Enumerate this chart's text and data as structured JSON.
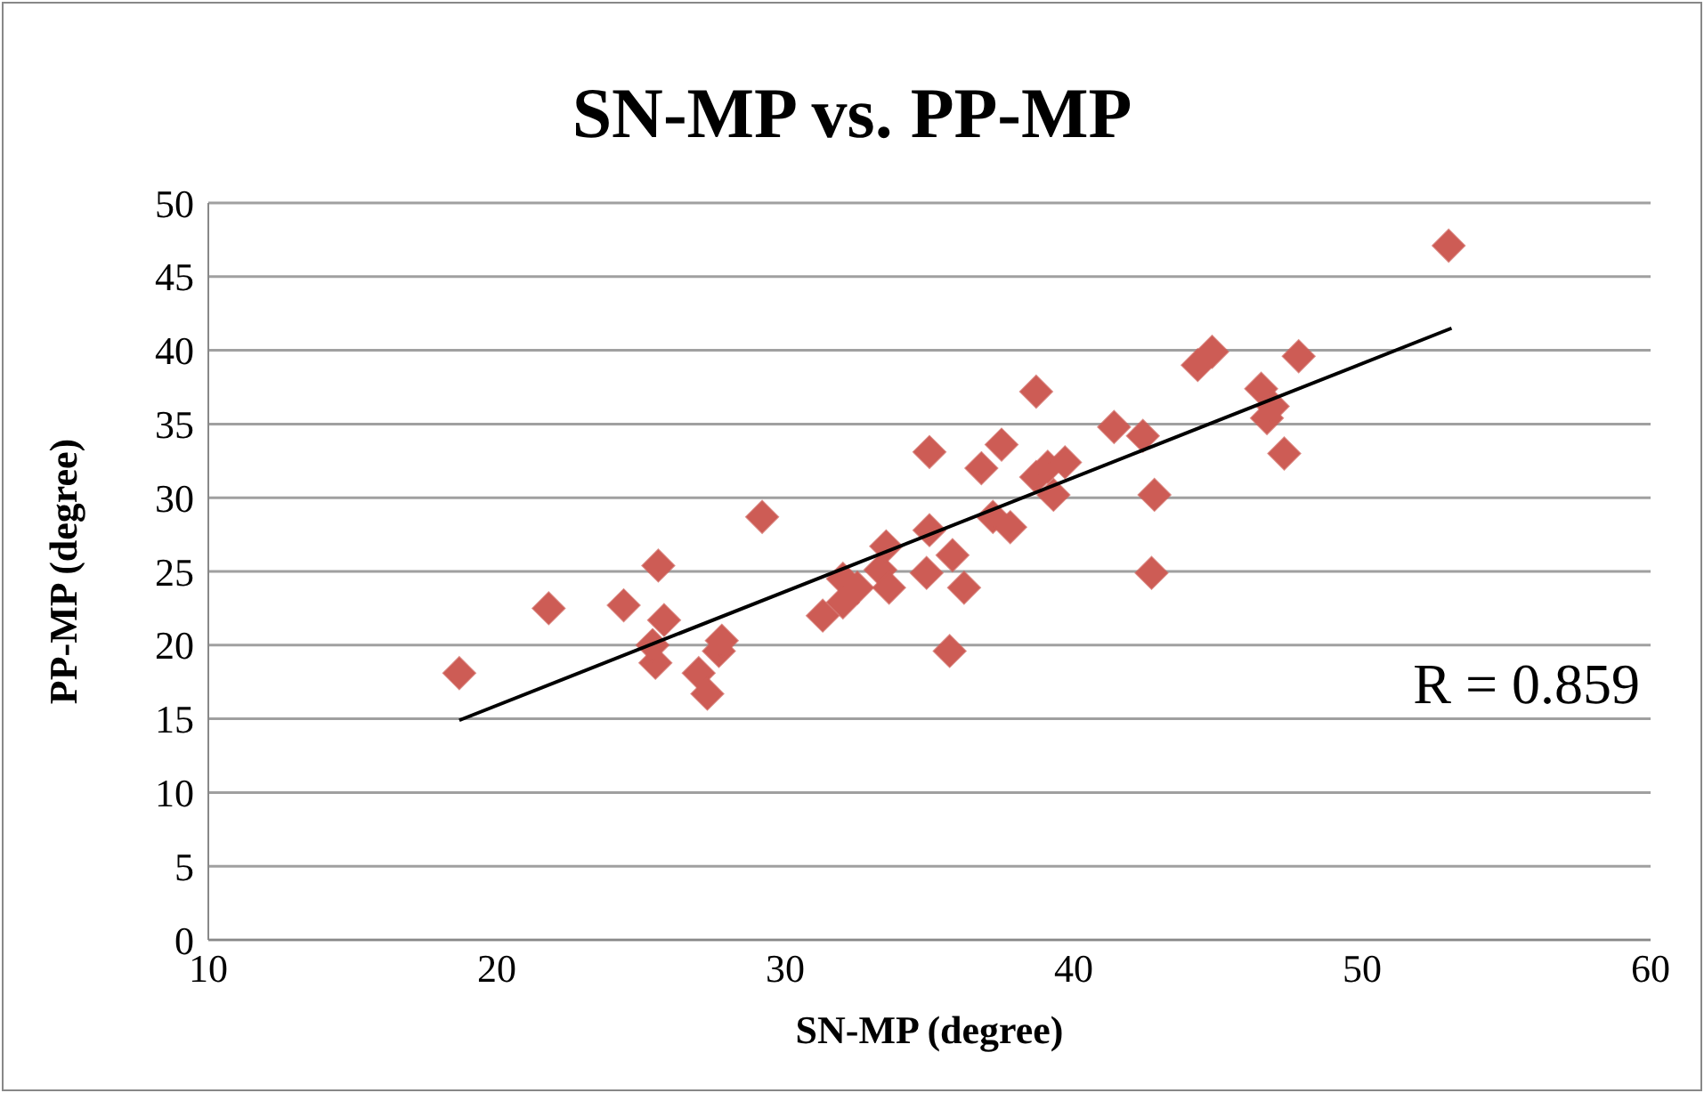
{
  "chart_data": {
    "type": "scatter",
    "title": "SN-MP vs. PP-MP",
    "xlabel": "SN-MP (degree)",
    "ylabel": "PP-MP (degree)",
    "xlim": [
      10,
      60
    ],
    "xticks": [
      10,
      20,
      30,
      40,
      50,
      60
    ],
    "ylim": [
      0,
      50
    ],
    "yticks": [
      0,
      5,
      10,
      15,
      20,
      25,
      30,
      35,
      40,
      45,
      50
    ],
    "grid": "y",
    "marker": "diamond",
    "legend": false,
    "annotations": [
      "R = 0.859"
    ],
    "series": [
      {
        "color": "#cd5c55",
        "x": [
          18.7,
          21.8,
          24.4,
          25.6,
          25.8,
          25.5,
          25.4,
          27.0,
          27.3,
          27.7,
          27.8,
          29.2,
          31.3,
          32.0,
          32.0,
          32.5,
          33.3,
          33.5,
          33.6,
          35.0,
          34.9,
          35.0,
          35.7,
          35.8,
          36.2,
          36.8,
          37.2,
          37.5,
          37.8,
          38.7,
          38.7,
          39.1,
          39.3,
          39.7,
          41.4,
          42.4,
          42.7,
          42.8,
          44.3,
          44.8,
          46.5,
          46.7,
          46.9,
          47.3,
          47.8,
          53.0
        ],
        "values": [
          18.1,
          22.5,
          22.7,
          25.4,
          21.7,
          18.8,
          20.0,
          18.1,
          16.7,
          19.6,
          20.3,
          28.7,
          22.0,
          24.5,
          22.9,
          23.9,
          25.1,
          26.7,
          23.9,
          33.1,
          24.9,
          27.8,
          19.6,
          26.1,
          23.9,
          32.0,
          28.7,
          33.6,
          28.0,
          37.2,
          31.4,
          32.1,
          30.2,
          32.4,
          34.8,
          34.2,
          24.9,
          30.2,
          39.0,
          39.9,
          37.4,
          35.4,
          36.2,
          33.0,
          39.6,
          47.1
        ]
      },
      {
        "type": "line",
        "color": "#000000",
        "marker": "none",
        "x": [
          18.7,
          53.1
        ],
        "values": [
          14.9,
          41.5
        ]
      }
    ]
  }
}
